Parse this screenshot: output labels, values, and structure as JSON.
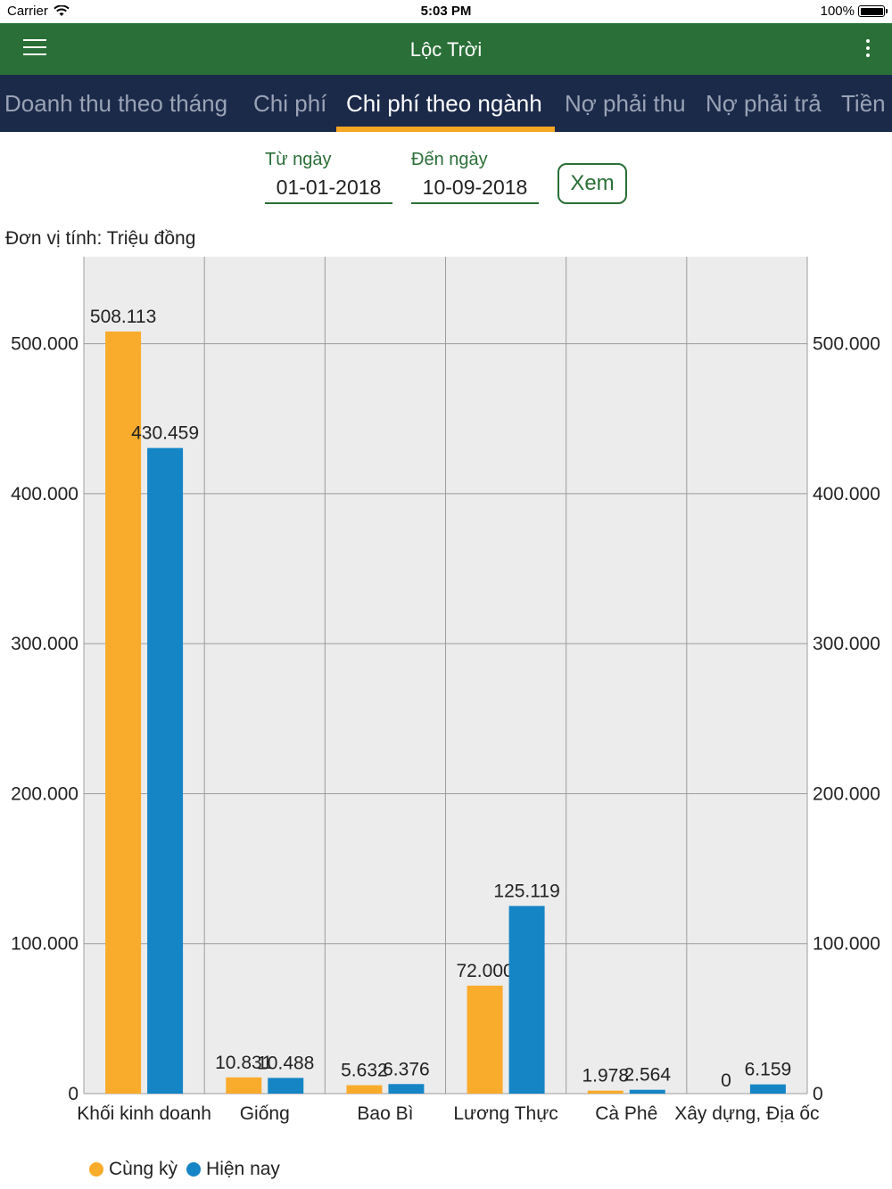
{
  "status_bar": {
    "carrier": "Carrier",
    "time": "5:03 PM",
    "battery": "100%"
  },
  "app_bar": {
    "title": "Lộc Trời"
  },
  "tabs": [
    {
      "label": "Doanh thu theo tháng",
      "active": false
    },
    {
      "label": "Chi phí",
      "active": false
    },
    {
      "label": "Chi phí theo ngành",
      "active": true
    },
    {
      "label": "Nợ phải thu",
      "active": false
    },
    {
      "label": "Nợ phải trả",
      "active": false
    },
    {
      "label": "Tiền",
      "active": false
    }
  ],
  "filter": {
    "from_label": "Từ ngày",
    "from_value": "01-01-2018",
    "to_label": "Đến ngày",
    "to_value": "10-09-2018",
    "view_button": "Xem"
  },
  "unit_note": "Đơn vị tính: Triệu đồng",
  "colors": {
    "cung_ky": "#f9ab2b",
    "hien_nay": "#1585c5",
    "header": "#2a6f37",
    "tabs": "#1c2a4a",
    "accent": "#f5a623"
  },
  "chart_data": {
    "type": "bar",
    "categories": [
      "Khối kinh doanh",
      "Giống",
      "Bao Bì",
      "Lương Thực",
      "Cà Phê",
      "Xây dựng, Địa ốc"
    ],
    "series": [
      {
        "name": "Cùng kỳ",
        "values": [
          508113,
          10831,
          5632,
          72000,
          1978,
          0
        ],
        "labels": [
          "508.113",
          "10.831",
          "5.632",
          "72.000",
          "1.978",
          "0"
        ]
      },
      {
        "name": "Hiện nay",
        "values": [
          430459,
          10488,
          6376,
          125119,
          2564,
          6159
        ],
        "labels": [
          "430.459",
          "10.488",
          "6.376",
          "125.119",
          "2.564",
          "6.159"
        ]
      }
    ],
    "y_ticks": [
      0,
      100000,
      200000,
      300000,
      400000,
      500000
    ],
    "y_tick_labels": [
      "0",
      "100.000",
      "200.000",
      "300.000",
      "400.000",
      "500.000"
    ],
    "ylim": [
      0,
      558000
    ],
    "grid": true,
    "legend_position": "bottom-left",
    "dual_y_axis": true
  }
}
